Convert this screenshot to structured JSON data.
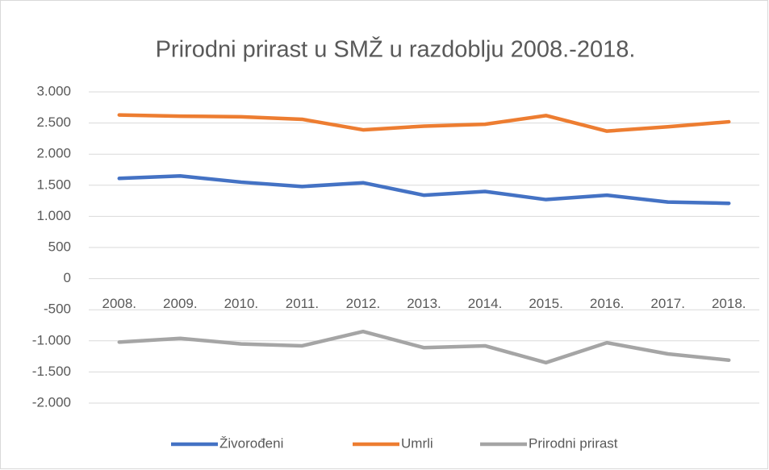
{
  "chart_data": {
    "type": "line",
    "title": "Prirodni prirast u SMŽ u razdoblju 2008.-2018.",
    "categories": [
      "2008.",
      "2009.",
      "2010.",
      "2011.",
      "2012.",
      "2013.",
      "2014.",
      "2015.",
      "2016.",
      "2017.",
      "2018."
    ],
    "series": [
      {
        "name": "Živorođeni",
        "color": "#4472c4",
        "values": [
          1610,
          1650,
          1550,
          1480,
          1540,
          1340,
          1400,
          1270,
          1340,
          1230,
          1210
        ]
      },
      {
        "name": "Umrli",
        "color": "#ed7d31",
        "values": [
          2630,
          2610,
          2600,
          2560,
          2390,
          2450,
          2480,
          2620,
          2370,
          2440,
          2520
        ]
      },
      {
        "name": "Prirodni prirast",
        "color": "#a5a5a5",
        "values": [
          -1020,
          -960,
          -1050,
          -1080,
          -850,
          -1110,
          -1080,
          -1350,
          -1030,
          -1210,
          -1310
        ]
      }
    ],
    "ylim": [
      -2000,
      3000
    ],
    "yticks": [
      {
        "value": -2000,
        "label": "-2.000"
      },
      {
        "value": -1500,
        "label": "-1.500"
      },
      {
        "value": -1000,
        "label": "-1.000"
      },
      -500,
      0,
      500,
      {
        "value": 1000,
        "label": "1.000"
      },
      {
        "value": 1500,
        "label": "1.500"
      },
      {
        "value": 2000,
        "label": "2.000"
      },
      {
        "value": 2500,
        "label": "2.500"
      },
      {
        "value": 3000,
        "label": "3.000"
      }
    ],
    "grid": true,
    "legend": "bottom"
  }
}
